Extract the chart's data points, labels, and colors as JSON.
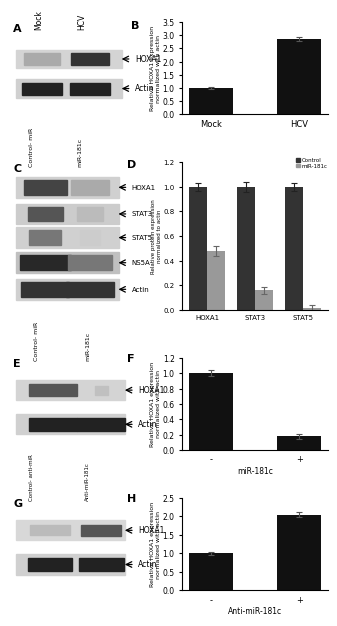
{
  "panel_B": {
    "categories": [
      "Mock",
      "HCV"
    ],
    "values": [
      1.0,
      2.85
    ],
    "errors": [
      0.05,
      0.08
    ],
    "ylabel": "Relative HOXA1 expression\nnormalized with actin",
    "label": "B",
    "ylim": [
      0,
      3.5
    ],
    "yticks": [
      0.0,
      0.5,
      1.0,
      1.5,
      2.0,
      2.5,
      3.0,
      3.5
    ],
    "bar_color": "#111111"
  },
  "panel_D": {
    "categories": [
      "HOXA1",
      "STAT3",
      "STAT5"
    ],
    "control_values": [
      1.0,
      1.0,
      1.0
    ],
    "mir_values": [
      0.48,
      0.16,
      0.02
    ],
    "control_errors": [
      0.03,
      0.04,
      0.03
    ],
    "mir_errors": [
      0.04,
      0.03,
      0.02
    ],
    "ylabel": "Relative protein expression\nnormalized to actin",
    "label": "D",
    "ylim": [
      0,
      1.2
    ],
    "yticks": [
      0.0,
      0.2,
      0.4,
      0.6,
      0.8,
      1.0,
      1.2
    ],
    "legend_control": "Control",
    "legend_mir": "miR-181c",
    "control_color": "#333333",
    "mir_color": "#999999"
  },
  "panel_F": {
    "categories": [
      "-",
      "+"
    ],
    "values": [
      1.0,
      0.18
    ],
    "errors": [
      0.04,
      0.03
    ],
    "ylabel": "Relative HOXA1 expression\nnormalized with actin",
    "xlabel": "miR-181c",
    "label": "F",
    "ylim": [
      0,
      1.2
    ],
    "yticks": [
      0.0,
      0.2,
      0.4,
      0.6,
      0.8,
      1.0,
      1.2
    ],
    "bar_color": "#111111"
  },
  "panel_H": {
    "categories": [
      "-",
      "+"
    ],
    "values": [
      1.0,
      2.05
    ],
    "errors": [
      0.04,
      0.06
    ],
    "ylabel": "Relative HOXA1 expression\nnormalized with actin",
    "xlabel": "Anti-miR-181c",
    "label": "H",
    "ylim": [
      0,
      2.5
    ],
    "yticks": [
      0.0,
      0.5,
      1.0,
      1.5,
      2.0,
      2.5
    ],
    "bar_color": "#111111"
  },
  "bg_color": "#ffffff",
  "gel_bg": "#e8e8e8",
  "band_strip_color": "#f0f0f0"
}
